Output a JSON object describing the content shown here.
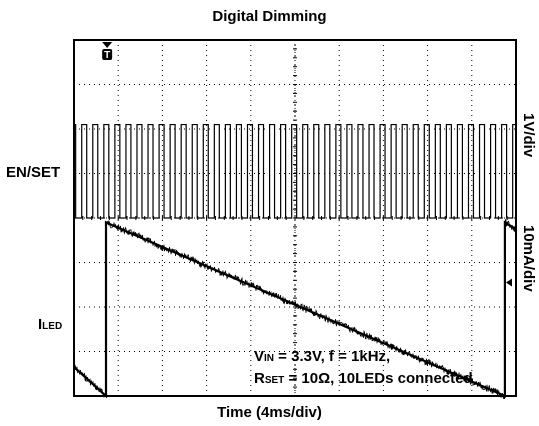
{
  "chart_data": {
    "type": "line",
    "title": "Digital Dimming",
    "xlabel": "Time (4ms/div)",
    "x_units": "ms",
    "xlim": [
      0,
      40
    ],
    "grid": true,
    "grid_divisions": {
      "x": 10,
      "y": 8
    },
    "trigger_marker": "T",
    "channels": [
      {
        "name": "EN/SET",
        "scale_label": "1V/div",
        "waveform": "square",
        "frequency_khz": 1,
        "period_ms": 1,
        "cycles_shown": 40,
        "low_div": 0.0,
        "high_div": 2.1,
        "baseline_div_from_top": 4.0
      },
      {
        "name": "I",
        "name_subscript": "LED",
        "scale_label": "10mA/div",
        "waveform": "sawtooth",
        "segments": [
          {
            "x": [
              0,
              2.9
            ],
            "y_div": [
              0.65,
              0.0
            ]
          },
          {
            "x": [
              2.9,
              2.9
            ],
            "y_div": [
              0.0,
              3.9
            ]
          },
          {
            "x": [
              2.9,
              39.0
            ],
            "y_div": [
              3.9,
              0.0
            ]
          },
          {
            "x": [
              39.0,
              39.0
            ],
            "y_div": [
              0.0,
              3.9
            ]
          },
          {
            "x": [
              39.0,
              40
            ],
            "y_div": [
              3.9,
              3.75
            ]
          }
        ],
        "baseline_div_from_top": 8.0
      }
    ]
  },
  "labels": {
    "en_set": "EN/SET",
    "iled_main": "I",
    "iled_sub": "LED",
    "ch1_scale": "1V/div",
    "ch2_scale": "10mA/div"
  },
  "annotation": {
    "line1_v": "V",
    "line1_sub": "IN",
    "line1_rest": " = 3.3V, f = 1kHz,",
    "line2_r": "R",
    "line2_sub": "SET",
    "line2_rest": " = 10Ω, 10LEDs connected"
  },
  "colors": {
    "trace": "#000000",
    "grid": "#000000",
    "background": "#ffffff"
  }
}
